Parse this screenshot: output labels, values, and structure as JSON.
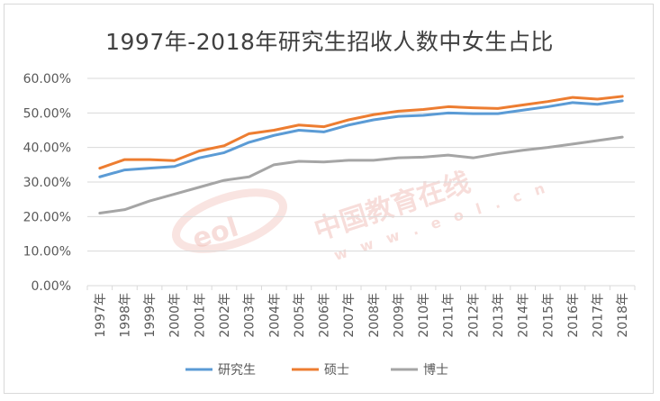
{
  "chart_data": {
    "type": "line",
    "title": "1997年-2018年研究生招收人数中女生占比",
    "categories": [
      "1997年",
      "1998年",
      "1999年",
      "2000年",
      "2001年",
      "2002年",
      "2003年",
      "2004年",
      "2005年",
      "2006年",
      "2007年",
      "2008年",
      "2009年",
      "2010年",
      "2011年",
      "2012年",
      "2013年",
      "2014年",
      "2015年",
      "2016年",
      "2017年",
      "2018年"
    ],
    "series": [
      {
        "name": "研究生",
        "color": "#5b9bd5",
        "values": [
          31.5,
          33.5,
          34.0,
          34.5,
          37.0,
          38.5,
          41.5,
          43.5,
          45.0,
          44.5,
          46.5,
          48.0,
          49.0,
          49.3,
          50.0,
          49.8,
          49.8,
          50.8,
          51.8,
          53.0,
          52.5,
          53.5
        ]
      },
      {
        "name": "硕士",
        "color": "#ed7d31",
        "values": [
          34.0,
          36.5,
          36.5,
          36.2,
          39.0,
          40.5,
          44.0,
          45.0,
          46.5,
          46.0,
          48.0,
          49.5,
          50.5,
          51.0,
          51.8,
          51.5,
          51.3,
          52.3,
          53.3,
          54.5,
          54.0,
          54.8
        ]
      },
      {
        "name": "博士",
        "color": "#a5a5a5",
        "values": [
          21.0,
          22.0,
          24.5,
          26.5,
          28.5,
          30.5,
          31.5,
          35.0,
          36.0,
          35.8,
          36.3,
          36.3,
          37.0,
          37.2,
          37.8,
          37.0,
          38.2,
          39.2,
          40.0,
          41.0,
          42.0,
          43.0
        ]
      }
    ],
    "y_ticks": [
      "0.00%",
      "10.00%",
      "20.00%",
      "30.00%",
      "40.00%",
      "50.00%",
      "60.00%"
    ],
    "ylim": [
      0,
      60
    ],
    "grid": true,
    "legend_position": "bottom"
  },
  "watermark": {
    "logo_text": "eol",
    "name": "中国教育在线",
    "domain": "w w w . e o l . c n"
  }
}
